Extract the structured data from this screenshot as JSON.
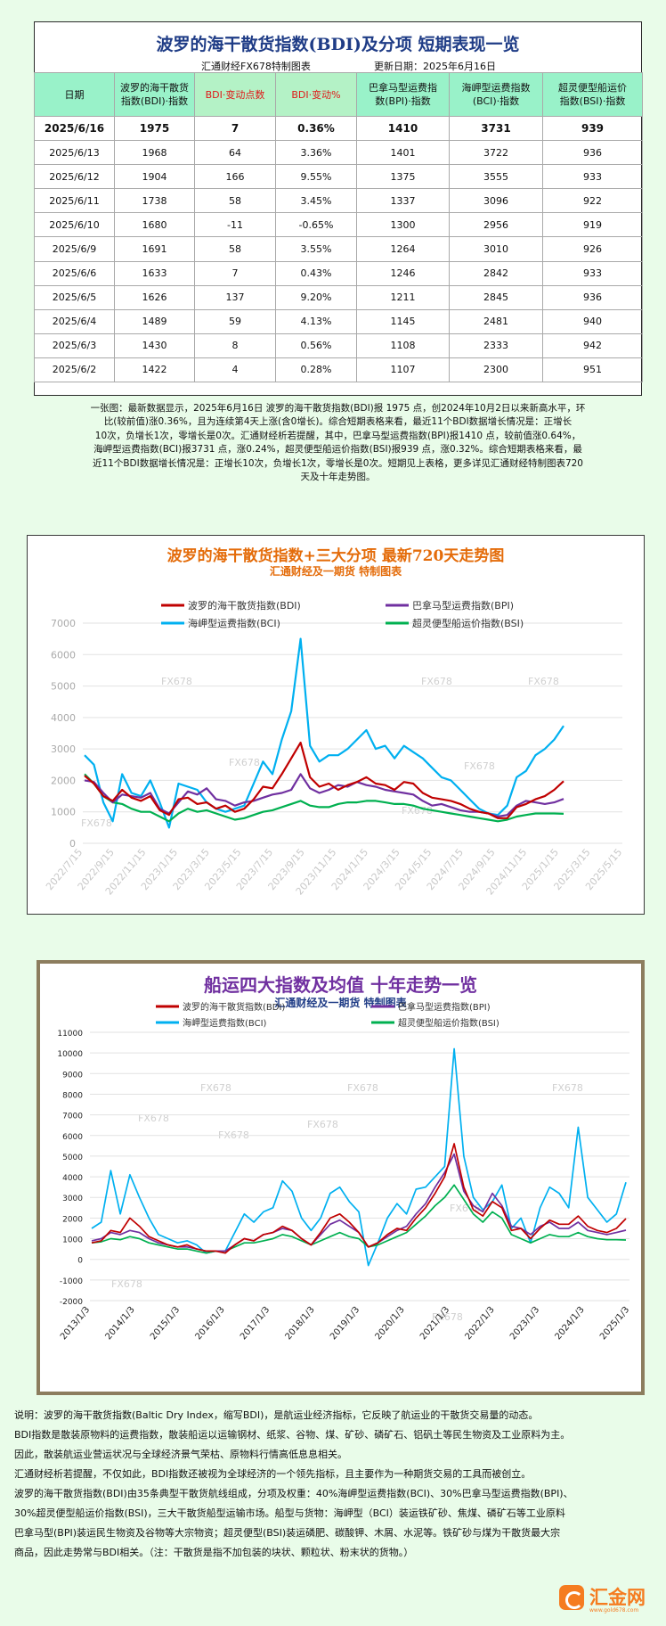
{
  "table": {
    "title": "波罗的海干散货指数(BDI)及分项  短期表现一览",
    "source": "汇通财经FX678特制图表",
    "updated": "更新日期：2025年6月16日",
    "headers": [
      [
        "日期"
      ],
      [
        "波罗的海干散货",
        "指数(BDI)·指数"
      ],
      [
        "BDI·变动点数"
      ],
      [
        "BDI·变动%"
      ],
      [
        "巴拿马型运费指",
        "数(BPI)·指数"
      ],
      [
        "海岬型运费指数",
        "(BCI)·指数"
      ],
      [
        "超灵便型船运价",
        "指数(BSI)·指数"
      ]
    ],
    "rows": [
      [
        "2025/6/16",
        "1975",
        "7",
        "0.36%",
        "1410",
        "3731",
        "939"
      ],
      [
        "2025/6/13",
        "1968",
        "64",
        "3.36%",
        "1401",
        "3722",
        "936"
      ],
      [
        "2025/6/12",
        "1904",
        "166",
        "9.55%",
        "1375",
        "3555",
        "933"
      ],
      [
        "2025/6/11",
        "1738",
        "58",
        "3.45%",
        "1337",
        "3096",
        "922"
      ],
      [
        "2025/6/10",
        "1680",
        "-11",
        "-0.65%",
        "1300",
        "2956",
        "919"
      ],
      [
        "2025/6/9",
        "1691",
        "58",
        "3.55%",
        "1264",
        "3010",
        "926"
      ],
      [
        "2025/6/6",
        "1633",
        "7",
        "0.43%",
        "1246",
        "2842",
        "933"
      ],
      [
        "2025/6/5",
        "1626",
        "137",
        "9.20%",
        "1211",
        "2845",
        "936"
      ],
      [
        "2025/6/4",
        "1489",
        "59",
        "4.13%",
        "1145",
        "2481",
        "940"
      ],
      [
        "2025/6/3",
        "1430",
        "8",
        "0.56%",
        "1108",
        "2333",
        "942"
      ],
      [
        "2025/6/2",
        "1422",
        "4",
        "0.28%",
        "1107",
        "2300",
        "951"
      ]
    ],
    "description": [
      "一张图：最新数据显示，2025年6月16日 波罗的海干散货指数(BDI)报 1975 点，创2024年10月2日以来新高水平，环",
      "比(较前值)涨0.36%，且为连续第4天上涨(含0增长)。综合短期表格来看，最近11个BDI数据增长情况是：正增长",
      "10次，负增长1次，零增长是0次。汇通财经析若提醒，其中，巴拿马型运费指数(BPI)报1410 点，较前值涨0.64%，",
      "海岬型运费指数(BCI)报3731 点，涨0.24%，超灵便型船运价指数(BSI)报939 点，涨0.32%。综合短期表格来看，最",
      "近11个BDI数据增长情况是：正增长10次，负增长1次，零增长是0次。短期见上表格，更多详见汇通财经特制图表720",
      "天及十年走势图。"
    ]
  },
  "chart1": {
    "title": "波罗的海干散货指数+三大分项  最新720天走势图",
    "subtitle": "汇通财经及一期货  特制图表",
    "watermark": "FX678",
    "chart_data": {
      "type": "line",
      "x_ticks": [
        "2022/7/15",
        "2022/9/15",
        "2022/11/15",
        "2023/1/15",
        "2023/3/15",
        "2023/5/15",
        "2023/7/15",
        "2023/9/15",
        "2023/11/15",
        "2024/1/15",
        "2024/3/15",
        "2024/5/15",
        "2024/7/15",
        "2024/9/15",
        "2024/11/15",
        "2025/1/15",
        "2025/3/15",
        "2025/5/15"
      ],
      "y_ticks": [
        0,
        1000,
        2000,
        3000,
        4000,
        5000,
        6000,
        7000
      ],
      "ylim": [
        0,
        7000
      ],
      "legend_position": "top",
      "series": [
        {
          "name": "波罗的海干散货指数(BDI)",
          "color": "#c00000",
          "values": [
            2150,
            1900,
            1500,
            1350,
            1700,
            1450,
            1350,
            1500,
            1050,
            900,
            1400,
            1450,
            1250,
            1300,
            1100,
            1200,
            1000,
            1100,
            1400,
            1800,
            1750,
            2200,
            2700,
            3200,
            2100,
            1800,
            1900,
            1700,
            1850,
            1950,
            2100,
            1900,
            1850,
            1700,
            1950,
            1900,
            1600,
            1450,
            1400,
            1350,
            1250,
            1100,
            1000,
            950,
            800,
            800,
            1150,
            1250,
            1400,
            1500,
            1700,
            1975
          ]
        },
        {
          "name": "巴拿马型运费指数(BPI)",
          "color": "#7030a0",
          "values": [
            2000,
            1950,
            1600,
            1300,
            1550,
            1500,
            1450,
            1600,
            1100,
            950,
            1300,
            1650,
            1550,
            1750,
            1400,
            1350,
            1200,
            1300,
            1350,
            1450,
            1550,
            1600,
            1700,
            2200,
            1750,
            1600,
            1700,
            1850,
            1800,
            1950,
            1850,
            1800,
            1700,
            1650,
            1600,
            1550,
            1350,
            1200,
            1250,
            1150,
            1050,
            1000,
            1000,
            950,
            850,
            900,
            1200,
            1350,
            1300,
            1250,
            1300,
            1410
          ]
        },
        {
          "name": "海岬型运费指数(BCI)",
          "color": "#00b0f0",
          "values": [
            2800,
            2500,
            1300,
            700,
            2200,
            1600,
            1500,
            2000,
            1300,
            500,
            1900,
            1800,
            1700,
            1300,
            1100,
            1000,
            1100,
            1200,
            1900,
            2600,
            2200,
            3300,
            4200,
            6500,
            3100,
            2600,
            2800,
            2800,
            3000,
            3300,
            3600,
            3000,
            3100,
            2700,
            3100,
            2900,
            2700,
            2400,
            2100,
            2000,
            1700,
            1400,
            1100,
            950,
            900,
            1200,
            2100,
            2300,
            2800,
            3000,
            3300,
            3731
          ]
        },
        {
          "name": "超灵便型船运价指数(BSI)",
          "color": "#00b050",
          "values": [
            2200,
            1900,
            1500,
            1300,
            1250,
            1100,
            1000,
            1000,
            850,
            700,
            950,
            1100,
            1000,
            1050,
            950,
            850,
            750,
            800,
            900,
            1000,
            1050,
            1150,
            1250,
            1350,
            1200,
            1150,
            1150,
            1250,
            1300,
            1300,
            1350,
            1350,
            1300,
            1250,
            1250,
            1200,
            1100,
            1050,
            1000,
            950,
            900,
            850,
            800,
            750,
            700,
            750,
            850,
            900,
            950,
            950,
            950,
            939
          ]
        }
      ]
    }
  },
  "chart2": {
    "title": "船运四大指数及均值 十年走势一览",
    "subtitle": "汇通财经及一期货 特制图表",
    "watermark": "FX678",
    "chart_data": {
      "type": "line",
      "x_ticks": [
        "2013/1/3",
        "2014/1/3",
        "2015/1/3",
        "2016/1/3",
        "2017/1/3",
        "2018/1/3",
        "2019/1/3",
        "2020/1/3",
        "2021/1/3",
        "2022/1/3",
        "2023/1/3",
        "2024/1/3",
        "2025/1/3"
      ],
      "y_ticks": [
        -2000,
        -1000,
        0,
        1000,
        2000,
        3000,
        4000,
        5000,
        6000,
        7000,
        8000,
        9000,
        10000,
        11000
      ],
      "ylim": [
        -2000,
        11000
      ],
      "legend_position": "top",
      "series": [
        {
          "name": "波罗的海干散货指数(BDI)",
          "color": "#c00000",
          "values": [
            800,
            900,
            1400,
            1300,
            2000,
            1600,
            1100,
            900,
            700,
            600,
            700,
            500,
            400,
            400,
            300,
            700,
            1000,
            900,
            1200,
            1300,
            1600,
            1400,
            1000,
            700,
            1300,
            2000,
            2200,
            1800,
            1300,
            600,
            800,
            1200,
            1500,
            1400,
            2000,
            2500,
            3200,
            4000,
            5600,
            3500,
            2400,
            2100,
            2800,
            2500,
            1400,
            1500,
            1000,
            1500,
            1900,
            1700,
            1700,
            2100,
            1600,
            1400,
            1300,
            1500,
            1975
          ]
        },
        {
          "name": "巴拿马型运费指数(BPI)",
          "color": "#7030a0",
          "values": [
            900,
            1000,
            1300,
            1200,
            1400,
            1300,
            1000,
            800,
            700,
            600,
            600,
            500,
            400,
            400,
            400,
            700,
            1000,
            900,
            1200,
            1300,
            1500,
            1400,
            1000,
            700,
            1200,
            1700,
            1900,
            1600,
            1300,
            600,
            800,
            1100,
            1400,
            1600,
            2200,
            2700,
            3500,
            4200,
            5100,
            3300,
            2600,
            2300,
            3200,
            2600,
            1600,
            1500,
            1200,
            1600,
            1800,
            1500,
            1500,
            1800,
            1400,
            1300,
            1200,
            1300,
            1410
          ]
        },
        {
          "name": "海岬型运费指数(BCI)",
          "color": "#00b0f0",
          "values": [
            1500,
            1800,
            4300,
            2200,
            4100,
            3000,
            2000,
            1200,
            1000,
            800,
            900,
            700,
            300,
            400,
            400,
            1300,
            2200,
            1800,
            2300,
            2500,
            3800,
            3300,
            2000,
            1400,
            2000,
            3200,
            3500,
            2800,
            2300,
            -300,
            800,
            2000,
            2700,
            2200,
            3400,
            3500,
            4000,
            4500,
            10200,
            5000,
            3000,
            2400,
            2800,
            3600,
            1500,
            2000,
            800,
            2500,
            3500,
            3200,
            2500,
            6400,
            3000,
            2400,
            1800,
            2200,
            3731
          ]
        },
        {
          "name": "超灵便型船运价指数(BSI)",
          "color": "#00b050",
          "values": [
            800,
            850,
            1000,
            950,
            1100,
            1000,
            800,
            700,
            600,
            500,
            500,
            400,
            300,
            400,
            400,
            600,
            800,
            800,
            900,
            1000,
            1200,
            1100,
            900,
            700,
            900,
            1100,
            1300,
            1100,
            1000,
            600,
            700,
            900,
            1100,
            1300,
            1700,
            2100,
            2600,
            3000,
            3600,
            2900,
            2200,
            1800,
            2300,
            2000,
            1200,
            1000,
            800,
            1000,
            1200,
            1100,
            1100,
            1300,
            1100,
            1000,
            950,
            950,
            939
          ]
        }
      ]
    }
  },
  "footer": {
    "paragraphs": [
      "说明：波罗的海干散货指数(Baltic Dry Index，缩写BDI)，是航运业经济指标，它反映了航运业的干散货交易量的动态。",
      "BDI指数是散装原物料的运费指数，散装船运以运输钢材、纸浆、谷物、煤、矿砂、磷矿石、铝矾土等民生物资及工业原料为主。",
      "因此，散装航运业营运状况与全球经济景气荣枯、原物料行情高低息息相关。",
      "汇通财经析若提醒，不仅如此，BDI指数还被视为全球经济的一个领先指标，且主要作为一种期货交易的工具而被创立。",
      "波罗的海干散货指数(BDI)由35条典型干散货航线组成，分项及权重：40%海岬型运费指数(BCI)、30%巴拿马型运费指数(BPI)、",
      "30%超灵便型船运价指数(BSI)，三大干散货船型运输市场。船型与货物：海岬型（BCI）装运铁矿砂、焦煤、磷矿石等工业原料",
      "巴拿马型(BPI)装运民生物资及谷物等大宗物资；超灵便型(BSI)装运磷肥、碳酸钾、木屑、水泥等。铁矿砂与煤为干散货最大宗",
      "商品，因此走势常与BDI相关。（注：干散货是指不加包装的块状、颗粒状、粉末状的货物。）"
    ]
  },
  "logo": {
    "name": "汇金网",
    "url": "www.gold678.com",
    "color": "#f57c20"
  }
}
